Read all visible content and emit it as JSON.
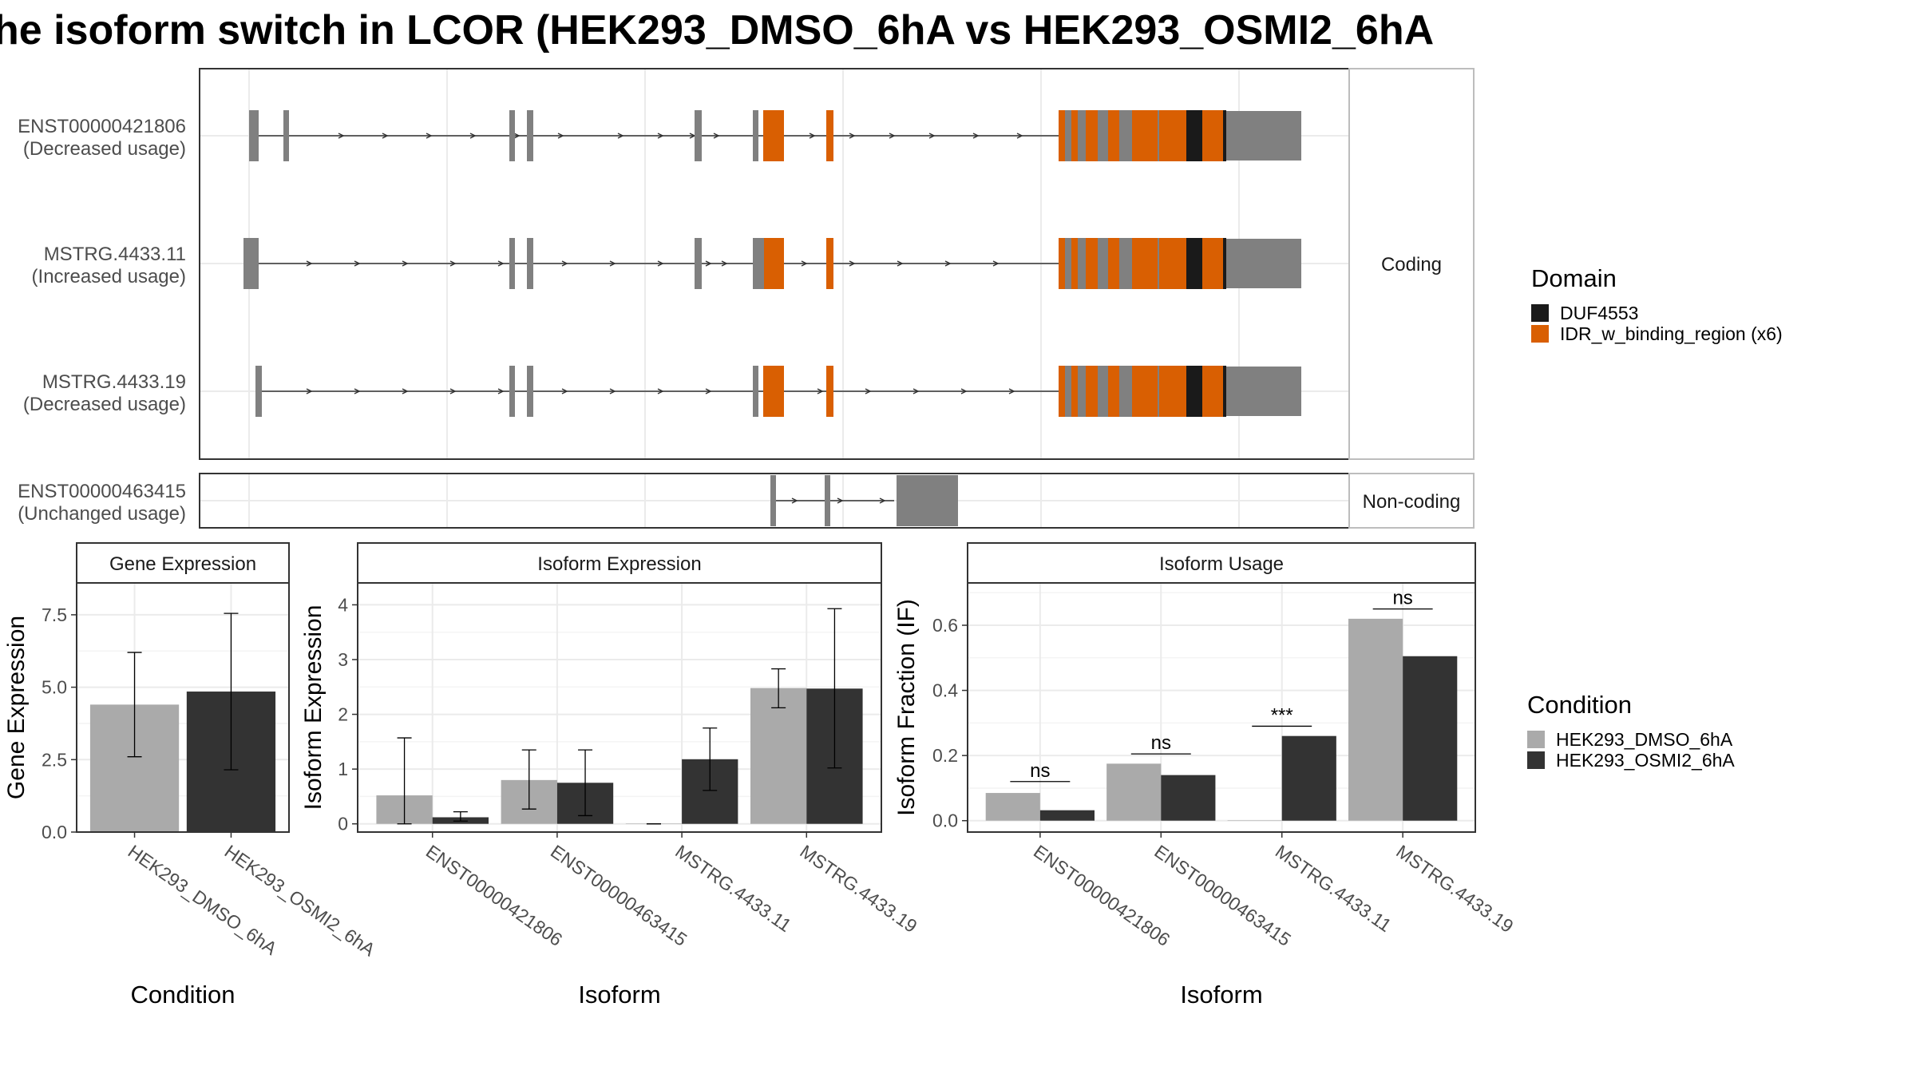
{
  "title": "he isoform switch in LCOR (HEK293_DMSO_6hA vs HEK293_OSMI2_6hA",
  "colors": {
    "dmso": "#AAAAAA",
    "osmi": "#333333",
    "exon": "#808080",
    "idr": "#D95F02",
    "duf": "#1A1A1A",
    "grid": "#EBEBEB",
    "border": "#333333",
    "strip_border": "#BDBDBD"
  },
  "structure": {
    "coding_label": "Coding",
    "noncoding_label": "Non-coding",
    "transcripts": [
      {
        "id": "ENST00000421806",
        "usage": "(Decreased usage)",
        "intron": [
          62,
          1076
        ],
        "arrows": [
          180,
          235,
          290,
          345,
          400,
          455,
          530,
          580,
          620,
          650,
          720,
          770,
          820,
          870,
          920,
          975,
          1030
        ],
        "segments": [
          {
            "x0": 62,
            "x1": 74,
            "kind": "utr"
          },
          {
            "x0": 105,
            "x1": 112,
            "kind": "utr"
          },
          {
            "x0": 388,
            "x1": 395,
            "kind": "utr"
          },
          {
            "x0": 410,
            "x1": 418,
            "kind": "utr"
          },
          {
            "x0": 620,
            "x1": 629,
            "kind": "utr"
          },
          {
            "x0": 693,
            "x1": 700,
            "kind": "utr"
          },
          {
            "x0": 706,
            "x1": 732,
            "kind": "idr"
          },
          {
            "x0": 785,
            "x1": 794,
            "kind": "idr"
          },
          {
            "x0": 1076,
            "x1": 1380,
            "kind": "block3"
          }
        ]
      },
      {
        "id": "MSTRG.4433.11",
        "usage": "(Increased usage)",
        "intron": [
          62,
          1076
        ],
        "arrows": [
          140,
          200,
          260,
          320,
          380,
          460,
          520,
          580,
          640,
          660,
          760,
          820,
          880,
          940,
          1000
        ],
        "segments": [
          {
            "x0": 55,
            "x1": 62,
            "kind": "utr"
          },
          {
            "x0": 62,
            "x1": 74,
            "kind": "utr"
          },
          {
            "x0": 388,
            "x1": 395,
            "kind": "utr"
          },
          {
            "x0": 410,
            "x1": 418,
            "kind": "utr"
          },
          {
            "x0": 620,
            "x1": 629,
            "kind": "utr"
          },
          {
            "x0": 693,
            "x1": 707,
            "kind": "utr"
          },
          {
            "x0": 707,
            "x1": 732,
            "kind": "idr"
          },
          {
            "x0": 785,
            "x1": 794,
            "kind": "idr"
          },
          {
            "x0": 1076,
            "x1": 1380,
            "kind": "block3"
          }
        ]
      },
      {
        "id": "MSTRG.4433.19",
        "usage": "(Decreased usage)",
        "intron": [
          70,
          1076
        ],
        "arrows": [
          140,
          200,
          260,
          320,
          380,
          460,
          520,
          580,
          640,
          720,
          780,
          840,
          900,
          960,
          1020
        ],
        "segments": [
          {
            "x0": 70,
            "x1": 78,
            "kind": "utr"
          },
          {
            "x0": 388,
            "x1": 395,
            "kind": "utr"
          },
          {
            "x0": 410,
            "x1": 418,
            "kind": "utr"
          },
          {
            "x0": 693,
            "x1": 700,
            "kind": "utr"
          },
          {
            "x0": 706,
            "x1": 732,
            "kind": "idr"
          },
          {
            "x0": 785,
            "x1": 794,
            "kind": "idr"
          },
          {
            "x0": 1076,
            "x1": 1380,
            "kind": "block3"
          }
        ]
      },
      {
        "id": "ENST00000463415",
        "usage": "(Unchanged usage)",
        "intron": [
          720,
          870
        ],
        "arrows": [
          748,
          805,
          858
        ],
        "segments": [
          {
            "x0": 715,
            "x1": 722,
            "kind": "utr"
          },
          {
            "x0": 783,
            "x1": 790,
            "kind": "utr"
          },
          {
            "x0": 873,
            "x1": 950,
            "kind": "utr"
          }
        ]
      }
    ],
    "block3": [
      {
        "x0": 1076,
        "x1": 1084,
        "kind": "idr"
      },
      {
        "x0": 1084,
        "x1": 1092,
        "kind": "utr"
      },
      {
        "x0": 1092,
        "x1": 1100,
        "kind": "idr"
      },
      {
        "x0": 1100,
        "x1": 1110,
        "kind": "utr"
      },
      {
        "x0": 1110,
        "x1": 1125,
        "kind": "idr"
      },
      {
        "x0": 1125,
        "x1": 1138,
        "kind": "utr"
      },
      {
        "x0": 1138,
        "x1": 1152,
        "kind": "idr"
      },
      {
        "x0": 1152,
        "x1": 1168,
        "kind": "utr"
      },
      {
        "x0": 1168,
        "x1": 1200,
        "kind": "idr"
      },
      {
        "x0": 1200,
        "x1": 1202,
        "kind": "utr"
      },
      {
        "x0": 1202,
        "x1": 1236,
        "kind": "idr"
      },
      {
        "x0": 1236,
        "x1": 1256,
        "kind": "duf"
      },
      {
        "x0": 1256,
        "x1": 1282,
        "kind": "idr"
      },
      {
        "x0": 1282,
        "x1": 1286,
        "kind": "duf"
      },
      {
        "x0": 1286,
        "x1": 1380,
        "kind": "utr3"
      }
    ]
  },
  "legend_domain": {
    "title": "Domain",
    "items": [
      {
        "label": "DUF4553",
        "kind": "duf"
      },
      {
        "label": "IDR_w_binding_region (x6)",
        "kind": "idr"
      }
    ]
  },
  "legend_condition": {
    "title": "Condition",
    "items": [
      {
        "label": "HEK293_DMSO_6hA",
        "kind": "dmso"
      },
      {
        "label": "HEK293_OSMI2_6hA",
        "kind": "osmi"
      }
    ]
  },
  "chart_data": [
    {
      "type": "bar",
      "title": "Gene Expression",
      "xlabel": "Condition",
      "ylabel": "Gene Expression",
      "ylim": [
        0,
        8.6
      ],
      "yticks": [
        0.0,
        2.5,
        5.0,
        7.5
      ],
      "ytick_labels": [
        "0.0",
        "2.5",
        "5.0",
        "7.5"
      ],
      "categories": [
        "HEK293_DMSO_6hA",
        "HEK293_OSMI2_6hA"
      ],
      "series": [
        {
          "name": "HEK293_DMSO_6hA",
          "values": [
            4.4,
            null
          ],
          "err_low": [
            2.6,
            null
          ],
          "err_high": [
            6.2,
            null
          ]
        },
        {
          "name": "HEK293_OSMI2_6hA",
          "values": [
            null,
            4.85
          ],
          "err_low": [
            null,
            2.15
          ],
          "err_high": [
            null,
            7.55
          ]
        }
      ],
      "grid": true
    },
    {
      "type": "bar",
      "title": "Isoform Expression",
      "xlabel": "Isoform",
      "ylabel": "Isoform Expression",
      "ylim": [
        -0.15,
        4.4
      ],
      "yticks": [
        0,
        1,
        2,
        3,
        4
      ],
      "ytick_labels": [
        "0",
        "1",
        "2",
        "3",
        "4"
      ],
      "categories": [
        "ENST00000421806",
        "ENST00000463415",
        "MSTRG.4433.11",
        "MSTRG.4433.19"
      ],
      "series": [
        {
          "name": "HEK293_DMSO_6hA",
          "values": [
            0.52,
            0.8,
            0.0,
            2.48
          ],
          "err_low": [
            0.0,
            0.27,
            0.0,
            2.12
          ],
          "err_high": [
            1.57,
            1.35,
            0.0,
            2.83
          ]
        },
        {
          "name": "HEK293_OSMI2_6hA",
          "values": [
            0.12,
            0.75,
            1.18,
            2.47
          ],
          "err_low": [
            0.05,
            0.15,
            0.61,
            1.02
          ],
          "err_high": [
            0.22,
            1.35,
            1.75,
            3.93
          ]
        }
      ],
      "grid": true
    },
    {
      "type": "bar",
      "title": "Isoform Usage",
      "xlabel": "Isoform",
      "ylabel": "Isoform Fraction (IF)",
      "ylim": [
        -0.035,
        0.73
      ],
      "yticks": [
        0.0,
        0.2,
        0.4,
        0.6
      ],
      "ytick_labels": [
        "0.0",
        "0.2",
        "0.4",
        "0.6"
      ],
      "categories": [
        "ENST00000421806",
        "ENST00000463415",
        "MSTRG.4433.11",
        "MSTRG.4433.19"
      ],
      "series": [
        {
          "name": "HEK293_DMSO_6hA",
          "values": [
            0.085,
            0.175,
            0.0,
            0.62
          ]
        },
        {
          "name": "HEK293_OSMI2_6hA",
          "values": [
            0.032,
            0.14,
            0.26,
            0.505
          ]
        }
      ],
      "significance": [
        {
          "category": 0,
          "label": "ns",
          "y": 0.12
        },
        {
          "category": 1,
          "label": "ns",
          "y": 0.205
        },
        {
          "category": 2,
          "label": "***",
          "y": 0.29
        },
        {
          "category": 3,
          "label": "ns",
          "y": 0.65
        }
      ],
      "grid": true
    }
  ]
}
